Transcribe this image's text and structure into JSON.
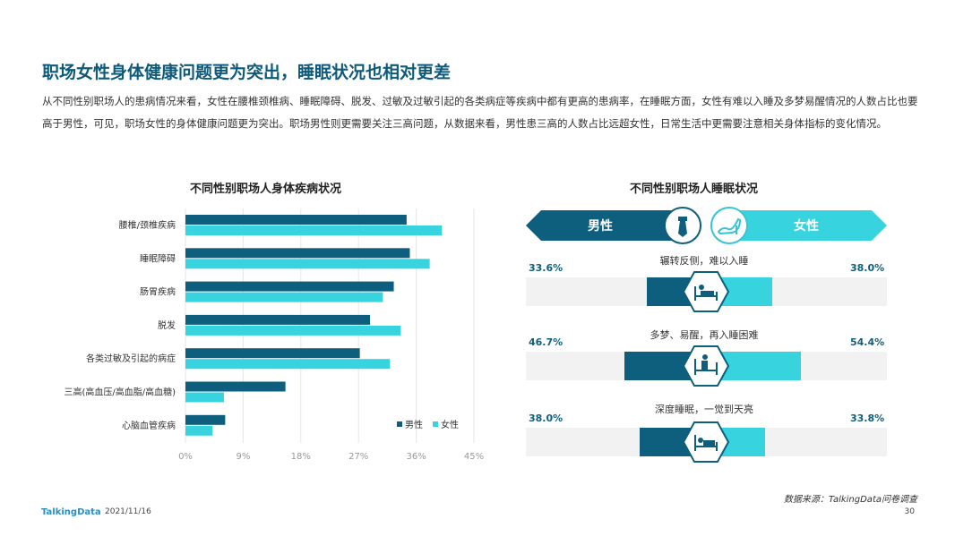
{
  "page": {
    "title": "职场女性身体健康问题更为突出，睡眠状况也相对更差",
    "description": "从不同性别职场人的患病情况来看，女性在腰椎颈椎病、睡眠障碍、脱发、过敏及过敏引起的各类病症等疾病中都有更高的患病率，在睡眠方面，女性有难以入睡及多梦易醒情况的人数占比也要高于男性，可见，职场女性的身体健康问题更为突出。职场男性则更需要关注三高问题，从数据来看，男性患三高的人数占比远超女性，日常生活中更需要注意相关身体指标的变化情况。",
    "source": "数据来源：TalkingData问卷调查",
    "logo": "TalkingData",
    "date": "2021/11/16",
    "page_number": "30"
  },
  "colors": {
    "male": "#0e5f7d",
    "female": "#37d4df",
    "title": "#0d5a7a"
  },
  "chart_data": [
    {
      "type": "bar",
      "orientation": "horizontal",
      "title": "不同性别职场人身体疾病状况",
      "categories": [
        "腰椎/颈椎疾病",
        "睡眠障碍",
        "肠胃疾病",
        "脱发",
        "各类过敏及引起的病症",
        "三高(高血压/高血脂/高血糖)",
        "心脑血管疾病"
      ],
      "series": [
        {
          "name": "男性",
          "values": [
            34.5,
            35.0,
            32.5,
            28.8,
            27.2,
            15.6,
            6.2
          ]
        },
        {
          "name": "女性",
          "values": [
            40.0,
            38.1,
            30.8,
            33.6,
            31.9,
            6.0,
            4.2
          ]
        }
      ],
      "xlim": [
        0,
        45
      ],
      "xticks": [
        "0%",
        "9%",
        "18%",
        "27%",
        "36%",
        "45%"
      ],
      "legend": "bottom-right"
    },
    {
      "type": "bar",
      "orientation": "diverging",
      "title": "不同性别职场人睡眠状况",
      "series_labels": {
        "male": "男性",
        "female": "女性"
      },
      "rows": [
        {
          "label": "辗转反侧，难以入睡",
          "male": 33.6,
          "female": 38.0,
          "male_text": "33.6%",
          "female_text": "38.0%",
          "icon": "bed-awake-icon"
        },
        {
          "label": "多梦、易醒，再入睡困难",
          "male": 46.7,
          "female": 54.4,
          "male_text": "46.7%",
          "female_text": "54.4%",
          "icon": "bed-restless-icon"
        },
        {
          "label": "深度睡眠，一觉到天亮",
          "male": 38.0,
          "female": 33.8,
          "male_text": "38.0%",
          "female_text": "33.8%",
          "icon": "bed-sleeping-icon"
        }
      ]
    }
  ]
}
